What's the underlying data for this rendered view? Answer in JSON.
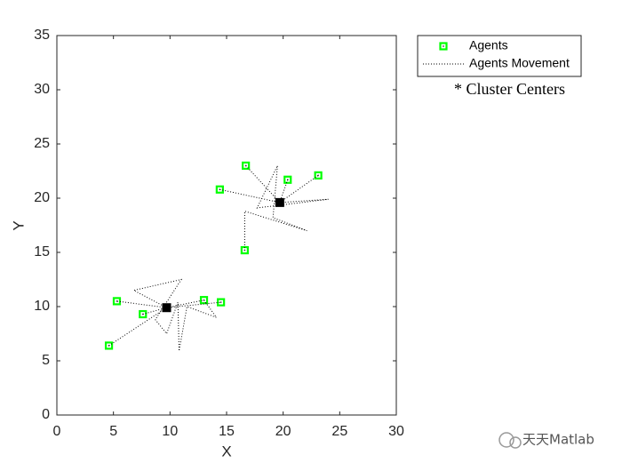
{
  "chart_data": {
    "type": "scatter",
    "xlabel": "X",
    "ylabel": "Y",
    "xlim": [
      0,
      30
    ],
    "ylim": [
      0,
      35
    ],
    "xticks": [
      0,
      5,
      10,
      15,
      20,
      25,
      30
    ],
    "yticks": [
      0,
      5,
      10,
      15,
      20,
      25,
      30,
      35
    ],
    "legend": "outside-top-right",
    "series": [
      {
        "name": "Agents",
        "color": "#00ff00",
        "marker": "square",
        "line": "none",
        "x": [
          5.3,
          7.6,
          4.6,
          13.0,
          14.5,
          16.7,
          14.4,
          20.4,
          23.1,
          16.6
        ],
        "y": [
          10.5,
          9.3,
          6.4,
          10.6,
          10.4,
          23.0,
          20.8,
          21.7,
          22.1,
          15.2
        ]
      },
      {
        "name": "Agents Movement",
        "color": "#000000",
        "marker": "none",
        "line": "dotted",
        "x": [
          4.6,
          9.7,
          6.8,
          11.0,
          8.7,
          9.7,
          10.7,
          10.8,
          11.5,
          14.1,
          13.0,
          9.7,
          5.3,
          null,
          7.6,
          9.7,
          14.5,
          null,
          14.4,
          19.7,
          24.0,
          17.7,
          19.5,
          19.1,
          22.1,
          16.6,
          16.6,
          null,
          16.7,
          19.7,
          23.1,
          null,
          20.4,
          19.7
        ],
        "y": [
          6.4,
          9.9,
          11.5,
          12.5,
          8.8,
          7.5,
          10.4,
          5.9,
          10.0,
          9.0,
          10.6,
          9.9,
          10.5,
          null,
          9.3,
          9.9,
          10.4,
          null,
          20.8,
          19.6,
          19.9,
          19.1,
          23.0,
          18.2,
          17.0,
          18.8,
          15.2,
          null,
          23.0,
          19.6,
          22.1,
          null,
          21.7,
          19.6
        ]
      },
      {
        "color": "#000000",
        "marker": "filled-square",
        "line": "none",
        "x": [
          9.7,
          19.7
        ],
        "y": [
          9.9,
          19.6
        ]
      }
    ],
    "annotation": "* Cluster Centers"
  },
  "watermark": "天天Matlab"
}
